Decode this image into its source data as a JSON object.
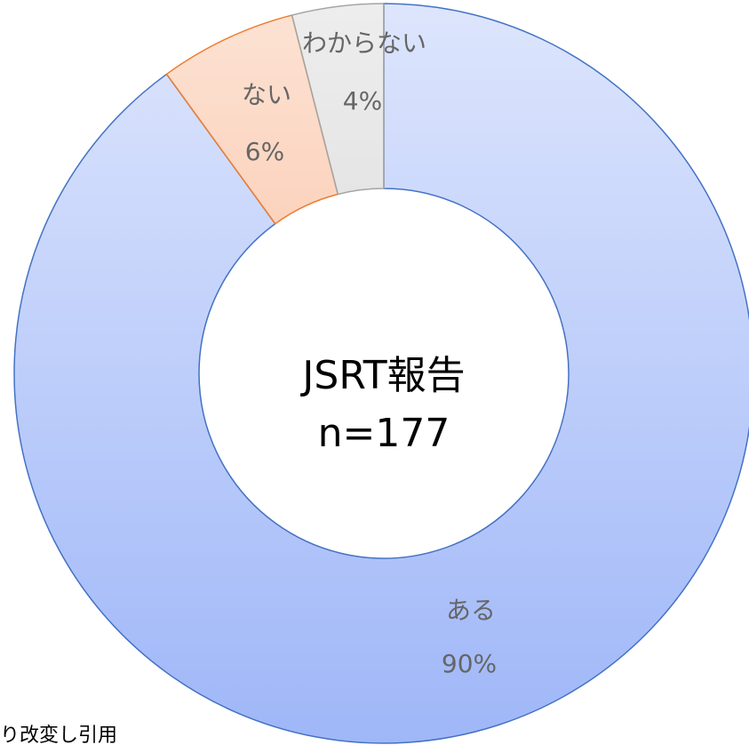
{
  "chart_data": {
    "type": "donut",
    "center_text": [
      "JSRT報告",
      "n=177"
    ],
    "categories": [
      "ある",
      "ない",
      "わからない"
    ],
    "values": [
      90,
      6,
      4
    ],
    "value_labels": [
      "90%",
      "6%",
      "4%"
    ],
    "colors": [
      "#8eaaf7",
      "#f7a070",
      "#c4c4c4"
    ],
    "edge_colors": [
      "#4472c4",
      "#ed7d31",
      "#a5a5a5"
    ],
    "footnote": "り改変し引用"
  }
}
